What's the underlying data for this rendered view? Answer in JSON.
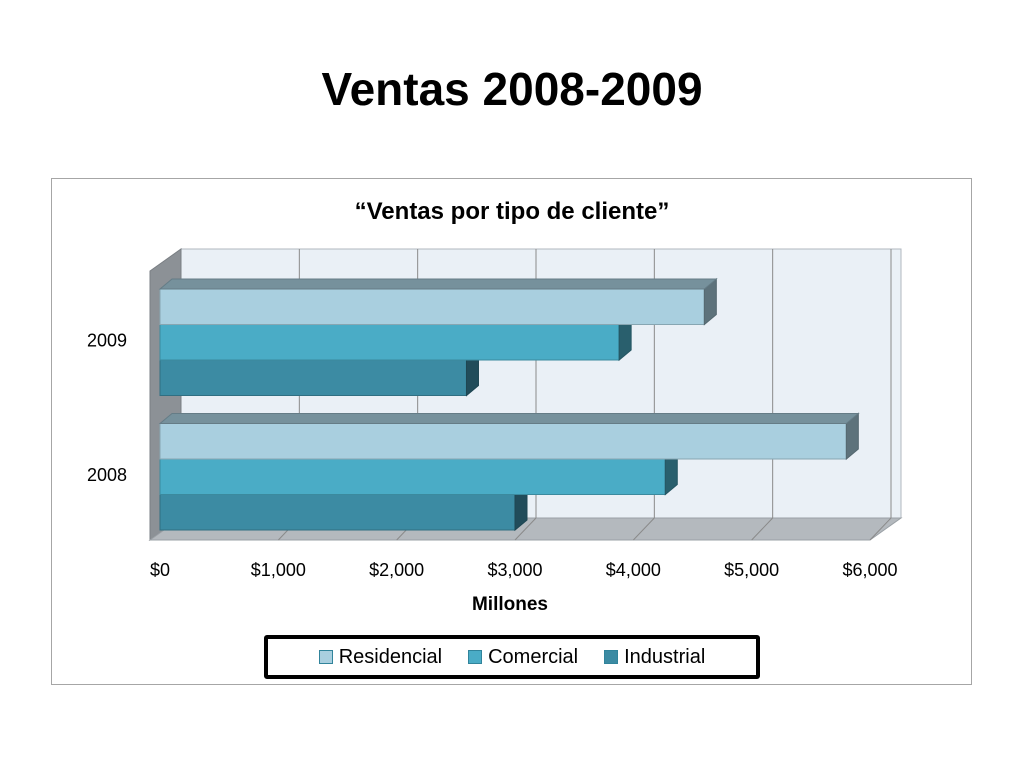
{
  "slide": {
    "title": "Ventas 2008-2009"
  },
  "chart_data": {
    "type": "bar",
    "orientation": "horizontal",
    "style": "3d-clustered",
    "title": "“Ventas por tipo de cliente”",
    "xlabel": "Millones",
    "ylabel": "",
    "categories": [
      "2008",
      "2009"
    ],
    "xlim": [
      0,
      6000
    ],
    "x_ticks": [
      0,
      1000,
      2000,
      3000,
      4000,
      5000,
      6000
    ],
    "x_tick_labels": [
      "$0",
      "$1,000",
      "$2,000",
      "$3,000",
      "$4,000",
      "$5,000",
      "$6,000"
    ],
    "grid": "vertical-major",
    "legend_position": "bottom",
    "series": [
      {
        "name": "Residencial",
        "color": "#a9cfdf",
        "values": [
          5800,
          4600
        ]
      },
      {
        "name": "Comercial",
        "color": "#4aacc6",
        "values": [
          4270,
          3880
        ]
      },
      {
        "name": "Industrial",
        "color": "#3c8ba3",
        "values": [
          3000,
          2590
        ]
      }
    ]
  }
}
